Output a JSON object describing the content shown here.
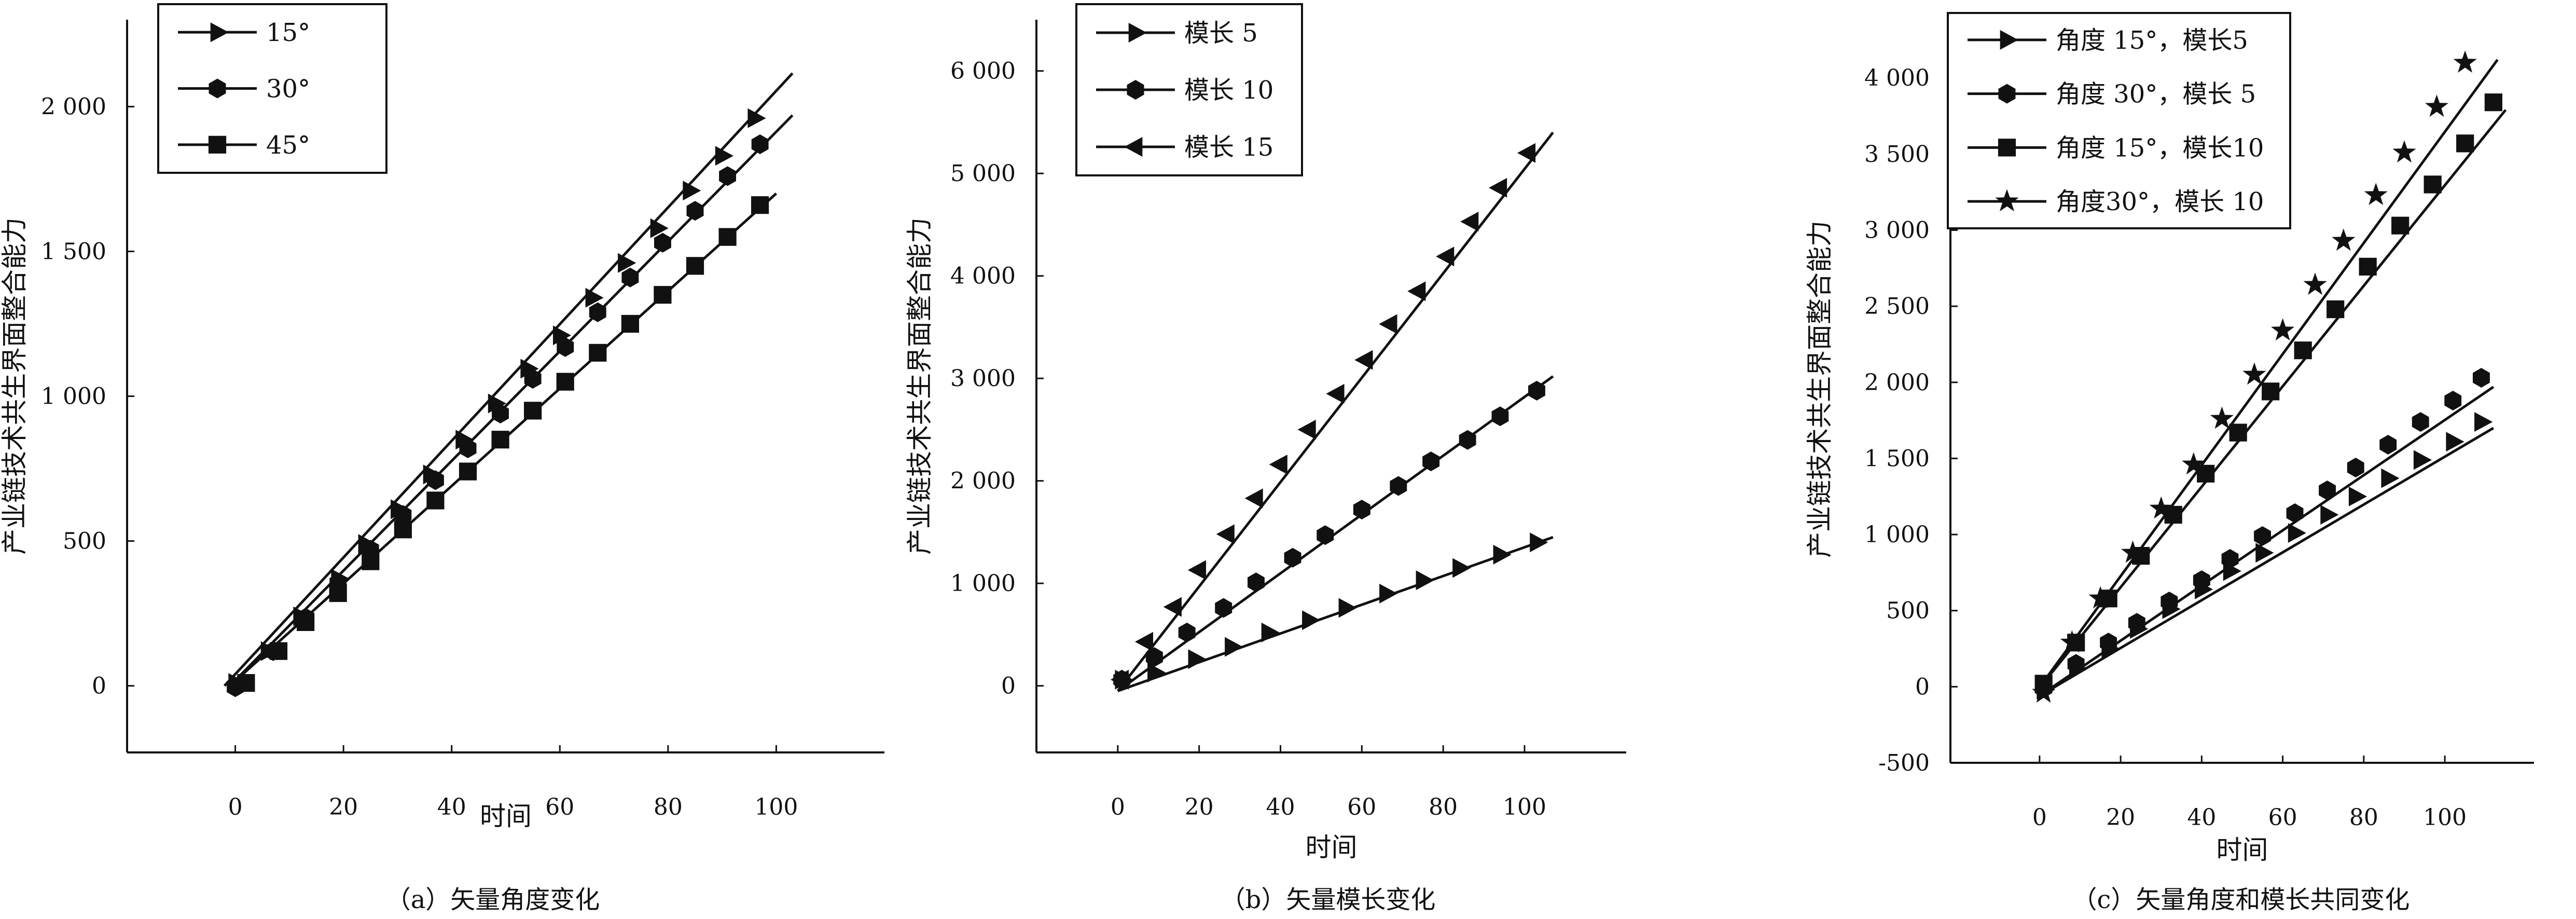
{
  "chart_data": [
    {
      "type": "line",
      "caption": "（a）矢量角度变化",
      "xlabel": "时间",
      "ylabel": "产业链技术共生界面整合能力",
      "xlim": [
        -20,
        120
      ],
      "ylim": [
        -230,
        2300
      ],
      "xticks": [
        0,
        20,
        40,
        60,
        80,
        100
      ],
      "yticks": [
        0,
        500,
        1000,
        1500,
        2000
      ],
      "xtick_labels": [
        "0",
        "20",
        "40",
        "60",
        "80",
        "100"
      ],
      "ytick_labels": [
        "0",
        "500",
        "1 000",
        "1 500",
        "2 000"
      ],
      "legend_position": "top-left",
      "series": [
        {
          "name": "15°",
          "marker": "triangle-right",
          "line_x": [
            -2,
            103
          ],
          "line_y": [
            0,
            2115
          ],
          "x": [
            0,
            6,
            12,
            19,
            24,
            30,
            36,
            42,
            48,
            54,
            60,
            66,
            72,
            78,
            84,
            90,
            96
          ],
          "y": [
            10,
            120,
            240,
            370,
            490,
            610,
            730,
            850,
            975,
            1095,
            1210,
            1340,
            1460,
            1580,
            1710,
            1830,
            1960
          ]
        },
        {
          "name": "30°",
          "marker": "hexagon",
          "line_x": [
            -1,
            103
          ],
          "line_y": [
            0,
            1970
          ],
          "x": [
            0,
            7,
            13,
            19,
            25,
            31,
            37,
            43,
            49,
            55,
            61,
            67,
            73,
            79,
            85,
            91,
            97
          ],
          "y": [
            -5,
            120,
            235,
            355,
            470,
            590,
            710,
            820,
            940,
            1060,
            1170,
            1290,
            1410,
            1530,
            1640,
            1760,
            1870
          ]
        },
        {
          "name": "45°",
          "marker": "square",
          "line_x": [
            -1,
            100
          ],
          "line_y": [
            0,
            1700
          ],
          "x": [
            2,
            8,
            13,
            19,
            25,
            31,
            37,
            43,
            49,
            55,
            61,
            67,
            73,
            79,
            85,
            91,
            97
          ],
          "y": [
            10,
            120,
            220,
            320,
            430,
            540,
            640,
            740,
            850,
            950,
            1050,
            1150,
            1250,
            1350,
            1450,
            1550,
            1660
          ]
        }
      ]
    },
    {
      "type": "line",
      "caption": "（b）矢量模长变化",
      "xlabel": "时间",
      "ylabel": "产业链技术共生界面整合能力",
      "xlim": [
        -20,
        125
      ],
      "ylim": [
        -650,
        6500
      ],
      "xticks": [
        0,
        20,
        40,
        60,
        80,
        100
      ],
      "yticks": [
        0,
        1000,
        2000,
        3000,
        4000,
        5000,
        6000
      ],
      "xtick_labels": [
        "0",
        "20",
        "40",
        "60",
        "80",
        "100"
      ],
      "ytick_labels": [
        "0",
        "1 000",
        "2 000",
        "3 000",
        "4 000",
        "5 000",
        "6 000"
      ],
      "legend_position": "top-left",
      "series": [
        {
          "name": "模长 5",
          "marker": "triangle-right",
          "line_x": [
            0,
            107
          ],
          "line_y": [
            -50,
            1450
          ],
          "x": [
            1,
            9,
            19,
            28,
            37,
            47,
            56,
            66,
            75,
            84,
            94,
            103
          ],
          "y": [
            60,
            130,
            260,
            380,
            520,
            640,
            760,
            900,
            1030,
            1150,
            1280,
            1400
          ]
        },
        {
          "name": "模长 10",
          "marker": "hexagon",
          "line_x": [
            0,
            107
          ],
          "line_y": [
            -50,
            3020
          ],
          "x": [
            1,
            9,
            17,
            26,
            34,
            43,
            51,
            60,
            69,
            77,
            86,
            94,
            103
          ],
          "y": [
            60,
            280,
            520,
            760,
            1010,
            1250,
            1470,
            1720,
            1950,
            2190,
            2400,
            2630,
            2880
          ]
        },
        {
          "name": "模长 15",
          "marker": "triangle-left",
          "line_x": [
            0,
            107
          ],
          "line_y": [
            -50,
            5400
          ],
          "x": [
            1,
            7,
            14,
            20,
            27,
            34,
            40,
            47,
            54,
            61,
            67,
            74,
            81,
            87,
            94,
            101
          ],
          "y": [
            60,
            430,
            770,
            1130,
            1480,
            1830,
            2160,
            2500,
            2850,
            3180,
            3530,
            3850,
            4190,
            4530,
            4860,
            5200
          ]
        }
      ]
    },
    {
      "type": "line",
      "caption": "（c）矢量角度和模长共同变化",
      "xlabel": "时间",
      "ylabel": "产业链技术共生界面整合能力",
      "xlim": [
        -22,
        122
      ],
      "ylim": [
        -500,
        4410
      ],
      "xticks": [
        0,
        20,
        40,
        60,
        80,
        100
      ],
      "yticks": [
        -500,
        0,
        500,
        1000,
        1500,
        2000,
        2500,
        3000,
        3500,
        4000
      ],
      "xtick_labels": [
        "0",
        "20",
        "40",
        "60",
        "80",
        "100"
      ],
      "ytick_labels": [
        "-500",
        "0",
        "500",
        "1 000",
        "1 500",
        "2 000",
        "2 500",
        "3 000",
        "3 500",
        "4 000"
      ],
      "legend_position": "top-left",
      "series": [
        {
          "name": "角度 15°，模长5",
          "marker": "triangle-right",
          "line_x": [
            0,
            112
          ],
          "line_y": [
            -60,
            1700
          ],
          "x": [
            1,
            9,
            17,
            24,
            32,
            40,
            47,
            55,
            63,
            71,
            78,
            86,
            94,
            102,
            109
          ],
          "y": [
            -20,
            120,
            250,
            380,
            510,
            640,
            760,
            880,
            1010,
            1130,
            1250,
            1370,
            1490,
            1610,
            1740
          ]
        },
        {
          "name": "角度 30°，模长 5",
          "marker": "hexagon",
          "line_x": [
            0,
            112
          ],
          "line_y": [
            -60,
            1970
          ],
          "x": [
            1,
            9,
            17,
            24,
            32,
            40,
            47,
            55,
            63,
            71,
            78,
            86,
            94,
            102,
            109
          ],
          "y": [
            -10,
            150,
            290,
            420,
            560,
            700,
            840,
            990,
            1140,
            1290,
            1440,
            1590,
            1740,
            1880,
            2030
          ]
        },
        {
          "name": "角度 15°，模长10",
          "marker": "square",
          "line_x": [
            -1,
            115
          ],
          "line_y": [
            -40,
            3790
          ],
          "x": [
            1,
            9,
            17,
            25,
            33,
            41,
            49,
            57,
            65,
            73,
            81,
            89,
            97,
            105,
            112
          ],
          "y": [
            20,
            290,
            580,
            860,
            1130,
            1400,
            1670,
            1940,
            2210,
            2480,
            2760,
            3030,
            3300,
            3570,
            3840
          ]
        },
        {
          "name": "角度30°，模长 10",
          "marker": "star",
          "line_x": [
            -1,
            113
          ],
          "line_y": [
            -40,
            4120
          ],
          "x": [
            1,
            8,
            15,
            23,
            30,
            38,
            45,
            53,
            60,
            68,
            75,
            83,
            90,
            98,
            105
          ],
          "y": [
            -40,
            290,
            580,
            880,
            1170,
            1460,
            1760,
            2050,
            2340,
            2640,
            2930,
            3230,
            3510,
            3810,
            4100
          ]
        }
      ]
    }
  ]
}
